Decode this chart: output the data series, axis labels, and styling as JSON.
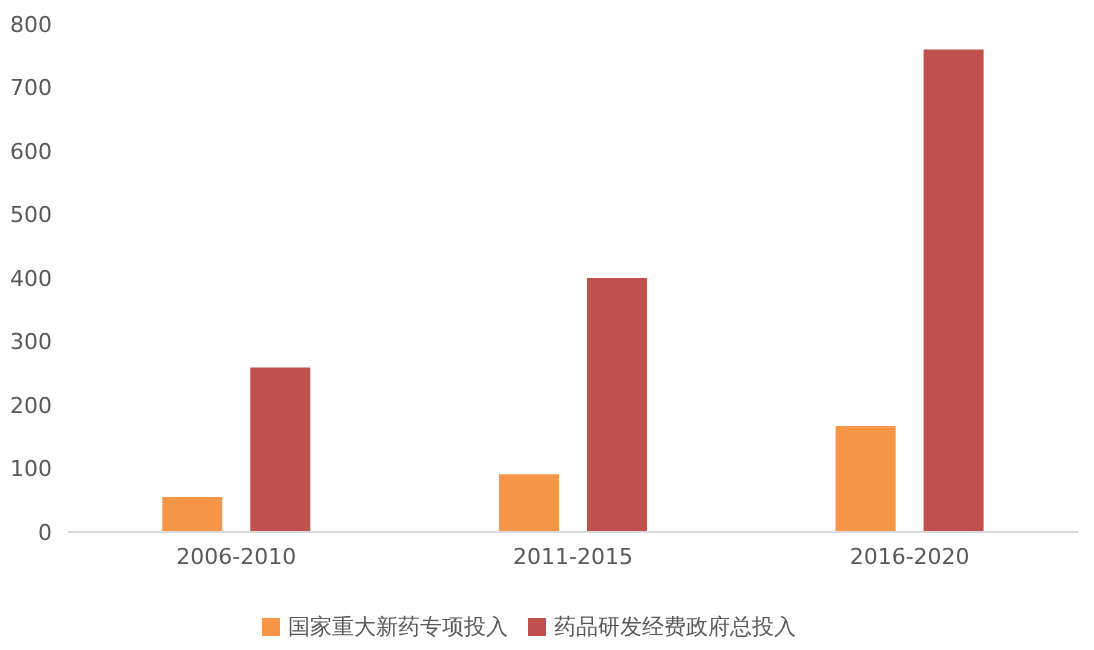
{
  "chart_data": {
    "type": "bar",
    "categories": [
      "2006-2010",
      "2011-2015",
      "2016-2020"
    ],
    "series": [
      {
        "name": "国家重大新药专项投入",
        "color": "#f79646",
        "values": [
          55,
          91,
          167
        ]
      },
      {
        "name": "药品研发经费政府总投入",
        "color": "#c0504d",
        "values": [
          259,
          400,
          760
        ]
      }
    ],
    "ylim": [
      0,
      800
    ],
    "yticks": [
      0,
      100,
      200,
      300,
      400,
      500,
      600,
      700,
      800
    ],
    "grid": false,
    "legend": "bottom"
  }
}
